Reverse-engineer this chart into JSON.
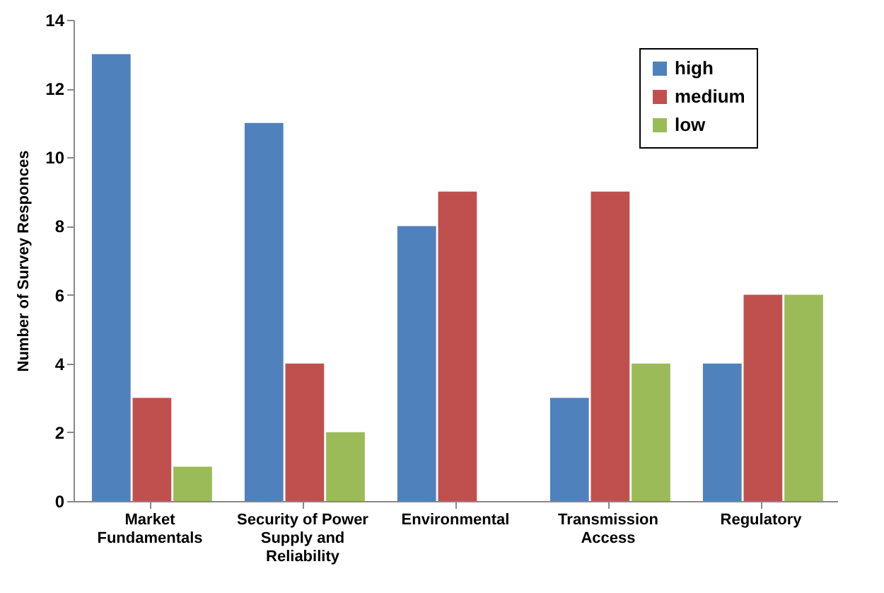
{
  "chart_data": {
    "type": "bar",
    "ylabel": "Number of Survey Responces",
    "categories": [
      "Market Fundamentals",
      "Security of Power Supply and Reliability",
      "Environmental",
      "Transmission Access",
      "Regulatory"
    ],
    "series": [
      {
        "name": "high",
        "color": "#4f81bd",
        "values": [
          13,
          11,
          8,
          3,
          4
        ]
      },
      {
        "name": "medium",
        "color": "#c0504d",
        "values": [
          3,
          4,
          9,
          9,
          6
        ]
      },
      {
        "name": "low",
        "color": "#9bbb59",
        "values": [
          1,
          2,
          null,
          4,
          6
        ]
      }
    ],
    "ylim": [
      0,
      14
    ],
    "yticks": [
      0,
      2,
      4,
      6,
      8,
      10,
      12,
      14
    ],
    "grid": false,
    "legend": "top right"
  }
}
